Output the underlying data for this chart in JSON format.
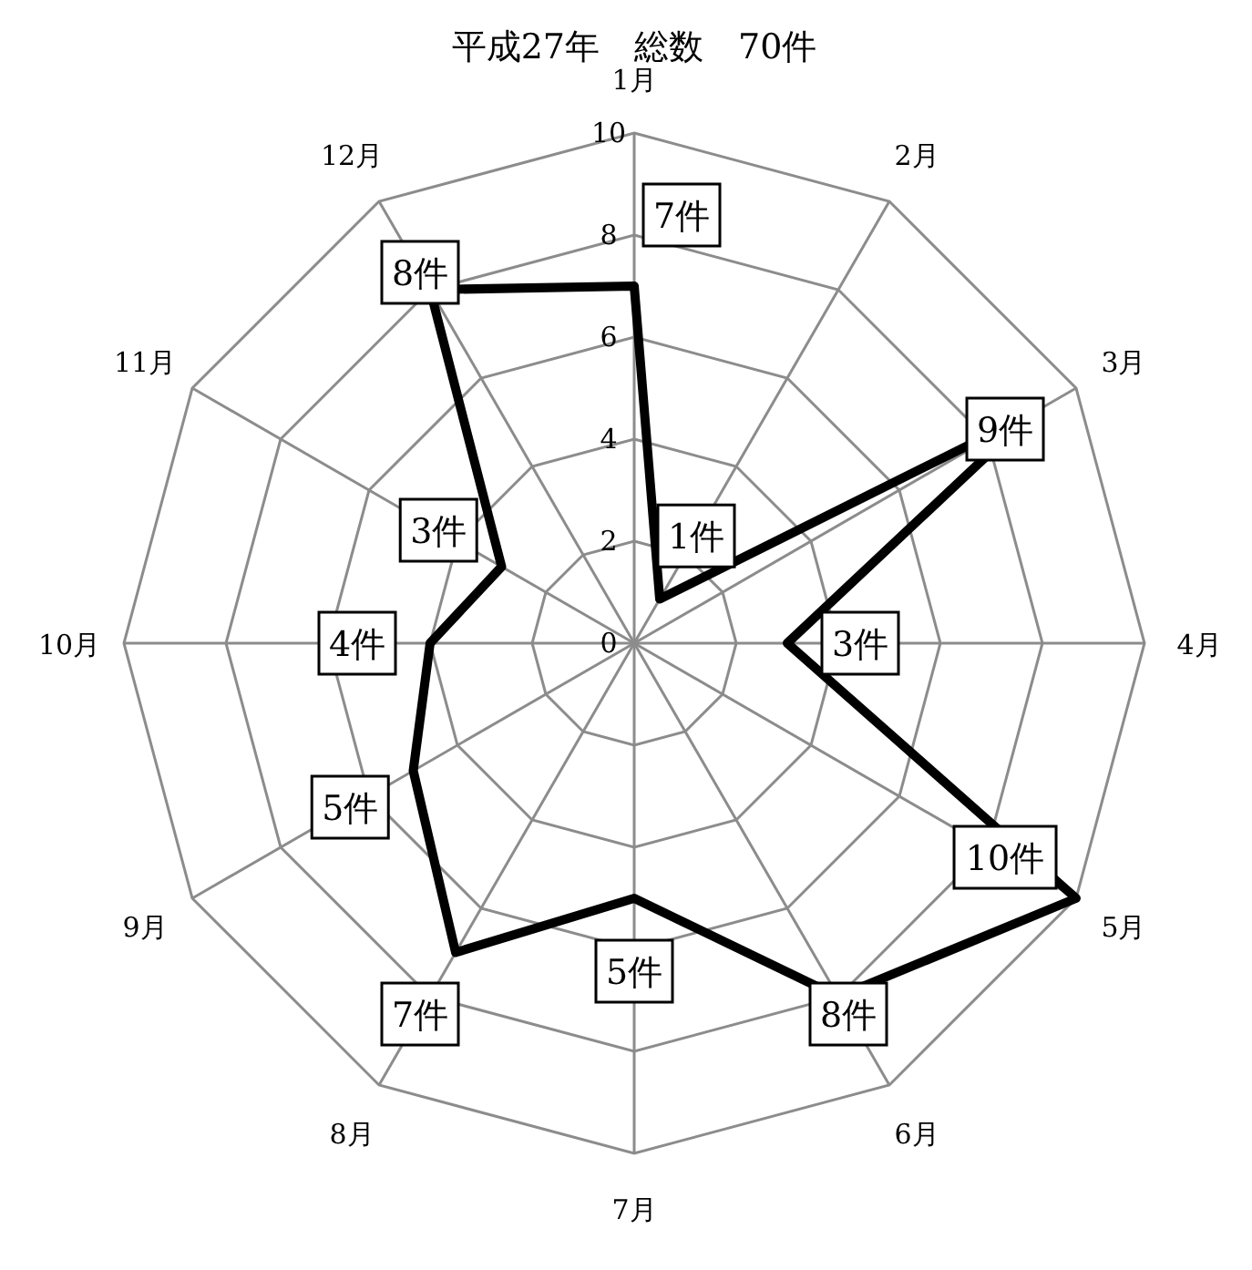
{
  "chart_data": {
    "type": "radar",
    "title": "平成27年　総数　70件",
    "categories": [
      "1月",
      "2月",
      "3月",
      "4月",
      "5月",
      "6月",
      "7月",
      "8月",
      "9月",
      "10月",
      "11月",
      "12月"
    ],
    "series": [
      {
        "color": "#000000",
        "values": [
          7,
          1,
          9,
          3,
          10,
          8,
          5,
          7,
          5,
          4,
          3,
          8
        ],
        "value_labels": [
          "7件",
          "1件",
          "9件",
          "3件",
          "10件",
          "8件",
          "5件",
          "7件",
          "5件",
          "4件",
          "3件",
          "8件"
        ]
      }
    ],
    "ylim": [
      0,
      10
    ],
    "yticks": [
      0,
      2,
      4,
      6,
      8,
      10
    ],
    "grid": true
  }
}
